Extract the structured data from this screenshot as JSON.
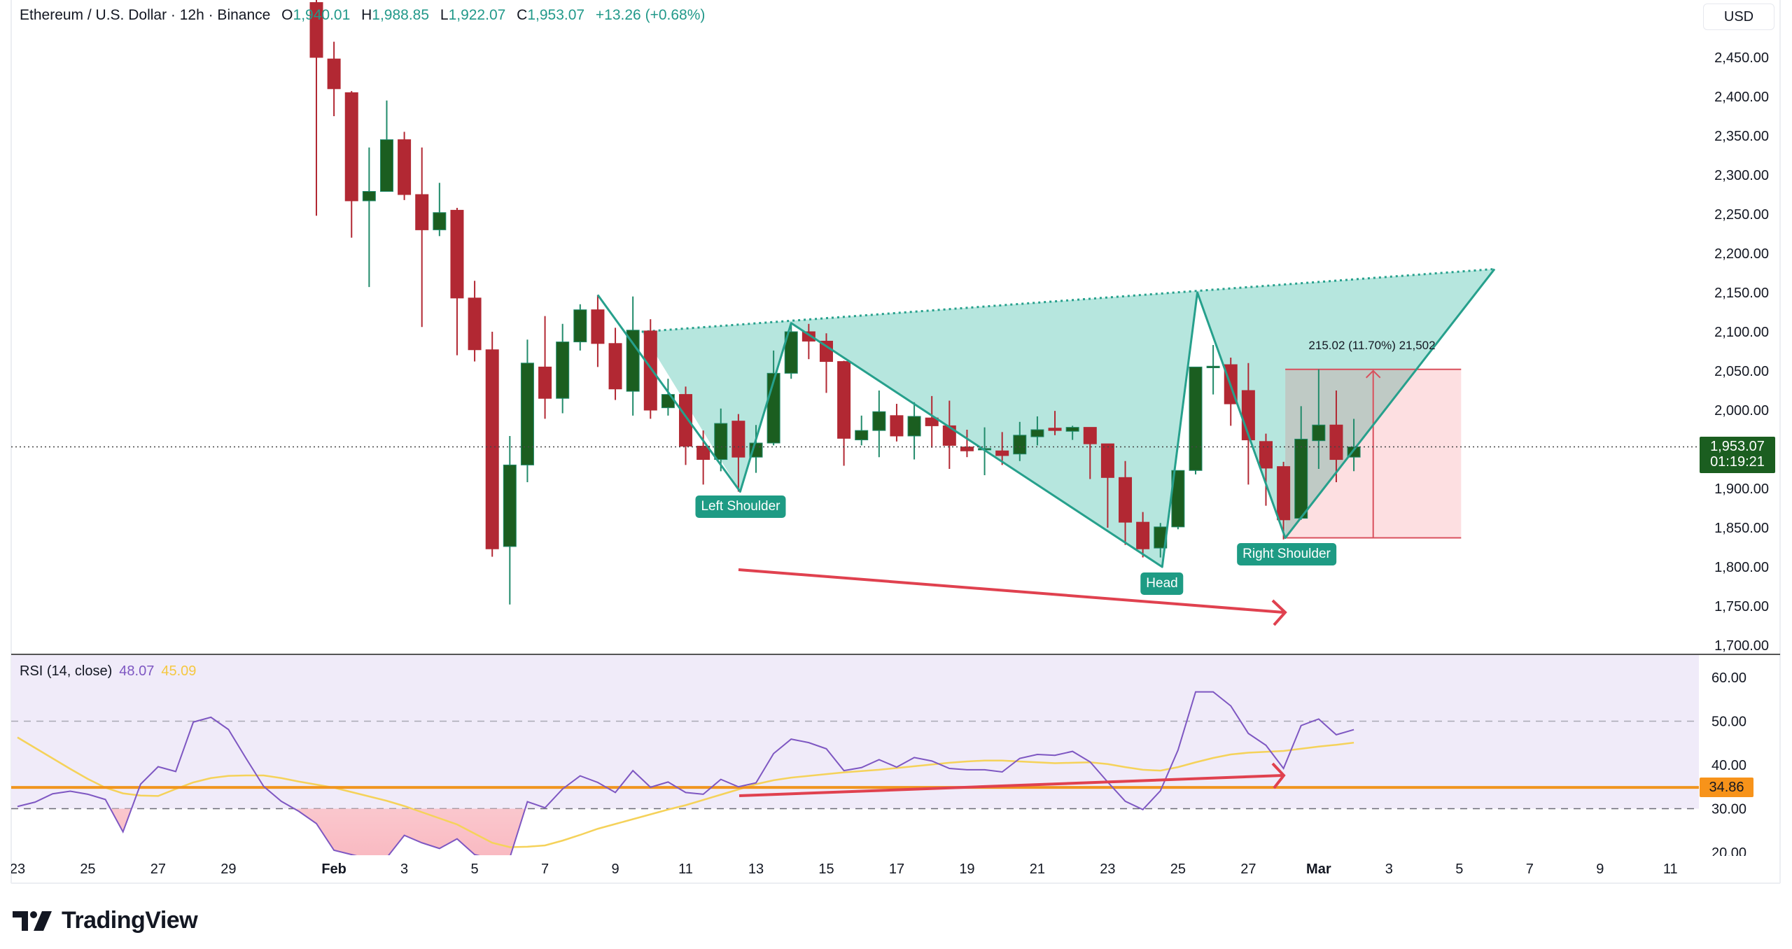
{
  "header": {
    "symbol": "Ethereum / U.S. Dollar · 12h · Binance",
    "o_label": "O",
    "o_value": "1,940.01",
    "h_label": "H",
    "h_value": "1,988.85",
    "l_label": "L",
    "l_value": "1,922.07",
    "c_label": "C",
    "c_value": "1,953.07",
    "change": "+13.26 (+0.68%)"
  },
  "currency_button": "USD",
  "price_axis": {
    "ticks": [
      "2,450.00",
      "2,400.00",
      "2,350.00",
      "2,300.00",
      "2,250.00",
      "2,200.00",
      "2,150.00",
      "2,100.00",
      "2,050.00",
      "2,000.00",
      "1,900.00",
      "1,850.00",
      "1,800.00",
      "1,750.00",
      "1,700.00"
    ],
    "current_price": "1,953.07",
    "countdown": "01:19:21"
  },
  "rsi": {
    "legend": "RSI (14, close)",
    "value": "48.07",
    "ma_value": "45.09",
    "ticks": [
      "60.00",
      "50.00",
      "40.00",
      "30.00",
      "20.00"
    ],
    "level_badge": "34.86"
  },
  "annotations": {
    "left_shoulder": "Left Shoulder",
    "head": "Head",
    "right_shoulder": "Right Shoulder",
    "range_measure": "215.02 (11.70%) 21,502"
  },
  "colors": {
    "up_body": "#1b5e20",
    "up_wick": "#218b6b",
    "down": "#b22833",
    "pattern_line": "#26a08c",
    "pattern_fill": "#b2e5dc",
    "arrow": "#e0414f",
    "rsi_line": "#7e57c2",
    "rsi_ma": "#f5d25a",
    "level": "#f0951f"
  },
  "logo": "TradingView",
  "chart_data": {
    "type": "candlestick",
    "title": "Ethereum / U.S. Dollar · 12h · Binance",
    "ylim": [
      1700,
      2450
    ],
    "x_labels": [
      {
        "text": "23",
        "index": -17
      },
      {
        "text": "25",
        "index": -13
      },
      {
        "text": "27",
        "index": -9
      },
      {
        "text": "29",
        "index": -5
      },
      {
        "text": "Feb",
        "index": 1
      },
      {
        "text": "3",
        "index": 5
      },
      {
        "text": "5",
        "index": 9
      },
      {
        "text": "7",
        "index": 13
      },
      {
        "text": "9",
        "index": 17
      },
      {
        "text": "11",
        "index": 21
      },
      {
        "text": "13",
        "index": 25
      },
      {
        "text": "15",
        "index": 29
      },
      {
        "text": "17",
        "index": 33
      },
      {
        "text": "19",
        "index": 37
      },
      {
        "text": "21",
        "index": 41
      },
      {
        "text": "23",
        "index": 45
      },
      {
        "text": "25",
        "index": 49
      },
      {
        "text": "27",
        "index": 53
      },
      {
        "text": "Mar",
        "index": 57
      },
      {
        "text": "3",
        "index": 61
      },
      {
        "text": "5",
        "index": 65
      },
      {
        "text": "7",
        "index": 69
      },
      {
        "text": "9",
        "index": 73
      },
      {
        "text": "11",
        "index": 77
      }
    ],
    "candles_ohlc": [
      [
        2520,
        2530,
        2248,
        2450
      ],
      [
        2448,
        2470,
        2375,
        2410
      ],
      [
        2405,
        2407,
        2220,
        2267
      ],
      [
        2267,
        2335,
        2157,
        2279
      ],
      [
        2279,
        2395,
        2279,
        2345
      ],
      [
        2345,
        2355,
        2268,
        2275
      ],
      [
        2275,
        2335,
        2106,
        2230
      ],
      [
        2230,
        2290,
        2222,
        2252
      ],
      [
        2255,
        2258,
        2070,
        2143
      ],
      [
        2143,
        2165,
        2062,
        2077
      ],
      [
        2077,
        2100,
        1813,
        1823
      ],
      [
        1826,
        1967,
        1752,
        1930
      ],
      [
        1930,
        2090,
        1908,
        2060
      ],
      [
        2055,
        2120,
        1989,
        2015
      ],
      [
        2015,
        2110,
        1996,
        2087
      ],
      [
        2087,
        2135,
        2076,
        2128
      ],
      [
        2128,
        2147,
        2055,
        2085
      ],
      [
        2085,
        2105,
        2013,
        2027
      ],
      [
        2024,
        2145,
        1993,
        2102
      ],
      [
        2101,
        2116,
        1989,
        2000
      ],
      [
        2003,
        2040,
        1993,
        2020
      ],
      [
        2020,
        2030,
        1930,
        1954
      ],
      [
        1954,
        1974,
        1905,
        1937
      ],
      [
        1937,
        2002,
        1922,
        1983
      ],
      [
        1986,
        1995,
        1896,
        1940
      ],
      [
        1940,
        1981,
        1920,
        1958
      ],
      [
        1958,
        2076,
        1955,
        2047
      ],
      [
        2047,
        2110,
        2040,
        2100
      ],
      [
        2100,
        2110,
        2065,
        2088
      ],
      [
        2088,
        2098,
        2022,
        2062
      ],
      [
        2062,
        2063,
        1929,
        1964
      ],
      [
        1962,
        1993,
        1955,
        1974
      ],
      [
        1974,
        2025,
        1940,
        1998
      ],
      [
        1993,
        2008,
        1960,
        1967
      ],
      [
        1967,
        2010,
        1937,
        1992
      ],
      [
        1990,
        2018,
        1952,
        1980
      ],
      [
        1980,
        2012,
        1925,
        1955
      ],
      [
        1953,
        1975,
        1940,
        1948
      ],
      [
        1950,
        1978,
        1917,
        1951
      ],
      [
        1948,
        1972,
        1930,
        1942
      ],
      [
        1944,
        1985,
        1935,
        1968
      ],
      [
        1966,
        1992,
        1955,
        1975
      ],
      [
        1977,
        1999,
        1968,
        1974
      ],
      [
        1973,
        1980,
        1962,
        1978
      ],
      [
        1978,
        1978,
        1912,
        1957
      ],
      [
        1957,
        1957,
        1850,
        1914
      ],
      [
        1914,
        1935,
        1828,
        1857
      ],
      [
        1857,
        1870,
        1812,
        1823
      ],
      [
        1824,
        1856,
        1812,
        1851
      ],
      [
        1851,
        1918,
        1848,
        1923
      ],
      [
        1923,
        1924,
        1918,
        2055
      ],
      [
        2054,
        2083,
        2020,
        2056
      ],
      [
        2058,
        2067,
        1980,
        2008
      ],
      [
        2025,
        2060,
        1905,
        1962
      ],
      [
        1960,
        1970,
        1878,
        1926
      ],
      [
        1928,
        1934,
        1835,
        1860
      ],
      [
        1862,
        2005,
        1860,
        1963
      ],
      [
        1961,
        2052,
        1925,
        1981
      ],
      [
        1981,
        2025,
        1908,
        1937
      ],
      [
        1940.01,
        1988.85,
        1922.07,
        1953.07
      ]
    ],
    "rsi_first_index": -17,
    "rsi_values": [
      30.5,
      31.5,
      33.4,
      34.0,
      33.3,
      32.1,
      24.7,
      35.6,
      39.6,
      38.5,
      49.8,
      50.9,
      48.1,
      41.5,
      35.1,
      31.7,
      29.4,
      26.6,
      20.5,
      19.5,
      18.5,
      18.8,
      23.9,
      22.2,
      20.9,
      23.1,
      19.5,
      18.5,
      18.8,
      31.6,
      30.2,
      34.5,
      37.5,
      36.0,
      33.7,
      38.7,
      34.9,
      36.1,
      33.7,
      33.3,
      36.7,
      35.0,
      35.9,
      42.6,
      45.9,
      45.1,
      43.7,
      38.7,
      39.4,
      41.2,
      39.5,
      41.7,
      40.9,
      39.2,
      38.9,
      38.9,
      38.4,
      41.5,
      42.4,
      42.2,
      43.1,
      40.7,
      36.1,
      31.7,
      29.8,
      34.1,
      43.4,
      56.7,
      56.7,
      53.5,
      47.2,
      44.5,
      39.2,
      49.0,
      50.5,
      46.9,
      48.07
    ],
    "rsi_ma_values": [
      46.3,
      43.9,
      41.5,
      39.1,
      36.8,
      34.8,
      33.5,
      33.0,
      32.9,
      34.5,
      36.0,
      37.0,
      37.5,
      37.6,
      37.6,
      37.0,
      36.2,
      35.5,
      34.8,
      33.8,
      32.8,
      31.8,
      30.6,
      29.2,
      27.8,
      26.4,
      24.3,
      22.2,
      21.2,
      21.3,
      21.6,
      22.7,
      24.0,
      25.4,
      26.5,
      27.6,
      28.7,
      29.8,
      30.8,
      32.0,
      33.2,
      34.4,
      35.6,
      36.5,
      37.1,
      37.5,
      37.9,
      38.3,
      38.6,
      38.9,
      39.3,
      39.7,
      40.1,
      40.5,
      40.8,
      41.0,
      41.0,
      40.8,
      40.6,
      40.4,
      40.5,
      40.6,
      40.2,
      39.5,
      38.9,
      38.7,
      39.5,
      40.6,
      41.6,
      42.4,
      42.8,
      43.0,
      43.2,
      43.7,
      44.2,
      44.6,
      45.09
    ],
    "rsi_ylim": [
      20,
      60
    ],
    "rsi_level": 34.86,
    "rsi_bands": [
      30,
      50
    ],
    "pattern": "inverse head and shoulders",
    "pattern_points": [
      {
        "index": 16.0,
        "price": 2147
      },
      {
        "index": 24.1,
        "price": 1896
      },
      {
        "index": 27.0,
        "price": 2111
      },
      {
        "index": 48.1,
        "price": 1800
      },
      {
        "index": 50.1,
        "price": 2150
      },
      {
        "index": 55.1,
        "price": 1837
      },
      {
        "index": 67.0,
        "price": 2180
      }
    ],
    "neckline": [
      {
        "index": 18.5,
        "price": 2100
      },
      {
        "index": 67.0,
        "price": 2180
      }
    ],
    "range_box": {
      "index_from": 55.1,
      "index_to": 65.1,
      "price_from": 1837,
      "price_to": 2052
    }
  }
}
